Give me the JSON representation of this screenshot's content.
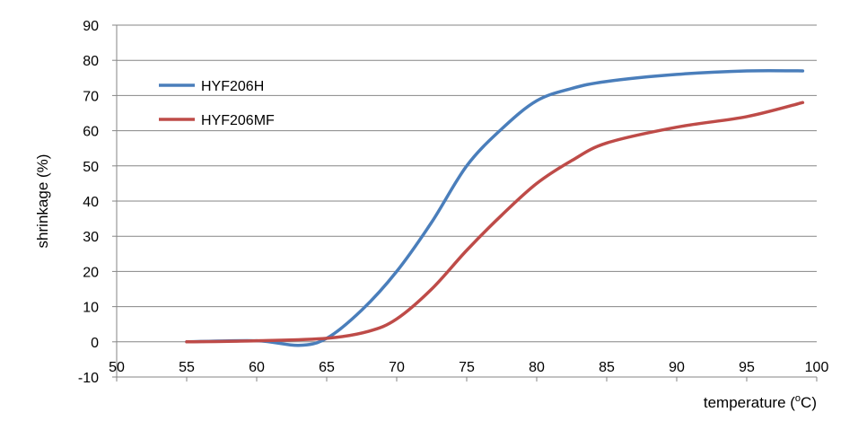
{
  "chart_data": {
    "type": "line",
    "title": "",
    "xlabel": "temperature (oC)",
    "xlabel_parts": {
      "pre": "temperature (",
      "sup": "o",
      "post": "C)"
    },
    "ylabel": "shrinkage (%)",
    "xlim": [
      50,
      100
    ],
    "ylim": [
      -10,
      90
    ],
    "xticks": [
      50,
      55,
      60,
      65,
      70,
      75,
      80,
      85,
      90,
      95,
      100
    ],
    "yticks": [
      -10,
      0,
      10,
      20,
      30,
      40,
      50,
      60,
      70,
      80,
      90
    ],
    "grid": "horizontal",
    "legend_position": "top-left",
    "series": [
      {
        "name": "HYF206H",
        "color": "#4a7ebb",
        "x": [
          55,
          60,
          63,
          65,
          67.5,
          70,
          72.5,
          75,
          77.5,
          80,
          82.5,
          85,
          90,
          95,
          99
        ],
        "y": [
          0,
          0.3,
          -1,
          1,
          9,
          20,
          34,
          50,
          60.5,
          68.5,
          72,
          74,
          76,
          77,
          77
        ]
      },
      {
        "name": "HYF206MF",
        "color": "#be4b48",
        "x": [
          55,
          60,
          65,
          68,
          70,
          72.5,
          75,
          77.5,
          80,
          82.5,
          85,
          90,
          95,
          99
        ],
        "y": [
          0,
          0.3,
          1,
          3,
          6.5,
          15,
          26,
          36,
          45,
          51.5,
          56.5,
          61,
          64,
          68
        ]
      }
    ]
  }
}
